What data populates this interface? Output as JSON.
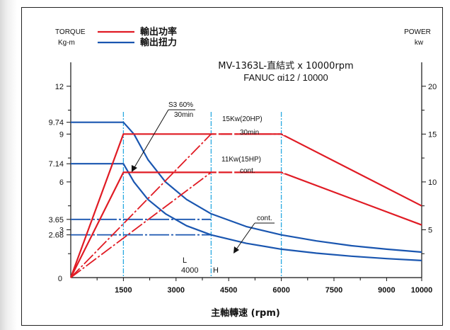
{
  "chart_data": {
    "type": "line",
    "title": "MV-1363L-直結式 x 10000rpm",
    "subtitle": "FANUC αi12 / 10000",
    "xlabel": "主軸轉速 (rpm)",
    "ylabel_left": [
      "TORQUE",
      "Kg-m"
    ],
    "ylabel_right": [
      "POWER",
      "kw"
    ],
    "legend": {
      "placement": "top-left",
      "items": [
        {
          "label": "輸出功率",
          "color": "#e01b24"
        },
        {
          "label": "輸出扭力",
          "color": "#1a56b0"
        }
      ]
    },
    "x_axis": {
      "ticks": [
        1500,
        3000,
        4500,
        6000,
        7500,
        9000,
        10000
      ],
      "origin_label": "0",
      "xlim": [
        0,
        10000
      ]
    },
    "y_left": {
      "ylim": [
        0,
        13.5
      ],
      "ticks": [
        "12",
        "9.74",
        "9",
        "7.14",
        "6",
        "3.65",
        "3",
        "2.68"
      ],
      "tick_values": [
        12,
        9.74,
        9,
        7.14,
        6,
        3.65,
        3,
        2.68
      ],
      "minor_ticks": [
        1.5,
        4.5,
        7.5,
        10.5
      ]
    },
    "y_right": {
      "ylim": [
        0,
        22.5
      ],
      "ticks": [
        "20",
        "15",
        "10",
        "5"
      ],
      "tick_values": [
        20,
        15,
        10,
        5
      ],
      "minor_ticks": [
        2.5,
        7.5,
        12.5,
        17.5
      ]
    },
    "series": [
      {
        "name": "S3 60% 30min torque",
        "axis": "left",
        "color": "#1a56b0",
        "x": [
          0,
          1500,
          1800,
          2200,
          2700,
          3300,
          4000,
          5000,
          6000,
          7000,
          8000,
          9000,
          10000
        ],
        "y": [
          9.74,
          9.74,
          9.0,
          7.4,
          6.0,
          4.9,
          4.0,
          3.2,
          2.68,
          2.3,
          2.0,
          1.78,
          1.6
        ]
      },
      {
        "name": "cont. torque",
        "axis": "left",
        "color": "#1a56b0",
        "x": [
          0,
          1500,
          1800,
          2200,
          2700,
          3300,
          4000,
          5000,
          6000,
          7000,
          8000,
          9000,
          10000
        ],
        "y": [
          7.14,
          7.14,
          6.0,
          4.9,
          4.0,
          3.25,
          2.68,
          2.15,
          1.78,
          1.53,
          1.34,
          1.19,
          1.07
        ]
      },
      {
        "name": "15Kw(20HP) 30min power",
        "axis": "right",
        "color": "#e01b24",
        "x": [
          0,
          1500,
          6000,
          10000
        ],
        "y": [
          0,
          15,
          15,
          7.5
        ]
      },
      {
        "name": "11Kw(15HP) cont. power",
        "axis": "right",
        "color": "#e01b24",
        "x": [
          0,
          1500,
          6000,
          10000
        ],
        "y": [
          0,
          11,
          11,
          5.5
        ]
      },
      {
        "name": "power rise to 15Kw at 4000",
        "axis": "right",
        "color": "#e01b24",
        "style": "dash-dot",
        "x": [
          0,
          4000,
          6000
        ],
        "y": [
          0,
          15,
          15
        ]
      },
      {
        "name": "power rise to 11Kw at 4000",
        "axis": "right",
        "color": "#e01b24",
        "style": "dash-dot",
        "x": [
          0,
          4000,
          6000
        ],
        "y": [
          0,
          11,
          11
        ]
      }
    ],
    "reference_lines": {
      "vertical": [
        1500,
        4000,
        6000
      ],
      "horizontal_left": [
        3.65,
        2.68
      ],
      "horizontal_left_span": [
        1500,
        4000
      ]
    },
    "annotations": [
      {
        "id": "s3",
        "lines": [
          "S3 60%",
          "30min"
        ]
      },
      {
        "id": "kw15",
        "lines": [
          "15Kw(20HP)",
          "30min"
        ]
      },
      {
        "id": "kw11",
        "lines": [
          "11Kw(15HP)",
          "cont."
        ]
      },
      {
        "id": "cont",
        "lines": [
          "cont."
        ]
      },
      {
        "id": "low",
        "lines": [
          "L",
          "4000",
          "H"
        ]
      }
    ],
    "grid": false
  }
}
